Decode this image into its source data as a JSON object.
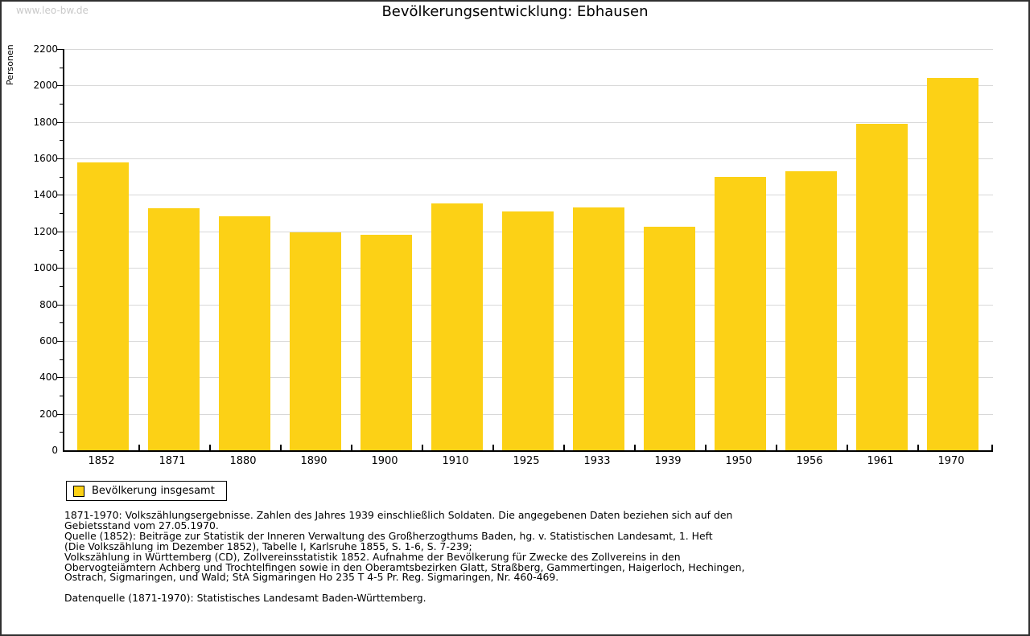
{
  "page": {
    "watermark": "www.leo-bw.de",
    "title": "Bevölkerungsentwicklung: Ebhausen"
  },
  "chart_data": {
    "type": "bar",
    "title": "Bevölkerungsentwicklung: Ebhausen",
    "xlabel": "",
    "ylabel": "Personen",
    "ylim": [
      0,
      2200
    ],
    "ytick_step": 200,
    "minor_tick_step": 100,
    "grid": true,
    "legend_position": "bottom-left",
    "categories": [
      "1852",
      "1871",
      "1880",
      "1890",
      "1900",
      "1910",
      "1925",
      "1933",
      "1939",
      "1950",
      "1956",
      "1961",
      "1970"
    ],
    "series": [
      {
        "name": "Bevölkerung insgesamt",
        "color": "#fcd116",
        "values": [
          1577,
          1326,
          1284,
          1193,
          1180,
          1355,
          1311,
          1330,
          1224,
          1499,
          1529,
          1790,
          2043
        ]
      }
    ]
  },
  "legend": {
    "label": "Bevölkerung insgesamt",
    "swatch_color": "#fcd116"
  },
  "footer": {
    "lines": [
      "1871-1970: Volkszählungsergebnisse. Zahlen des Jahres 1939 einschließlich Soldaten. Die angegebenen Daten beziehen sich auf den",
      "Gebietsstand vom 27.05.1970.",
      "Quelle (1852): Beiträge zur Statistik der Inneren Verwaltung des Großherzogthums Baden, hg. v. Statistischen Landesamt, 1. Heft",
      "(Die Volkszählung im Dezember 1852), Tabelle I, Karlsruhe 1855, S. 1-6, S. 7-239;",
      "Volkszählung in Württemberg (CD), Zollvereinsstatistik 1852. Aufnahme der Bevölkerung für Zwecke des Zollvereins in den",
      "Obervogteiämtern Achberg und Trochtelfingen sowie in den Oberamtsbezirken Glatt, Straßberg, Gammertingen, Haigerloch, Hechingen,",
      "Ostrach, Sigmaringen, und Wald; StA Sigmaringen Ho 235 T 4-5 Pr. Reg. Sigmaringen, Nr. 460-469."
    ],
    "datasource": "Datenquelle (1871-1970): Statistisches Landesamt Baden-Württemberg."
  },
  "colors": {
    "bar": "#fcd116",
    "grid": "#d8d8d8",
    "axis": "#000000",
    "watermark": "#c9c9c9"
  }
}
